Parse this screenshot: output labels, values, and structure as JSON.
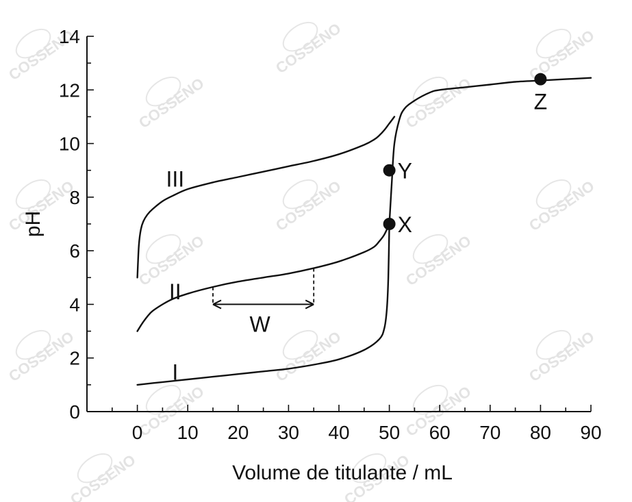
{
  "chart_data": {
    "type": "line",
    "xlabel": "Volume de titulante / mL",
    "ylabel": "pH",
    "xlim": [
      -10,
      90
    ],
    "ylim": [
      0,
      14
    ],
    "xticks": [
      0,
      10,
      20,
      30,
      40,
      50,
      60,
      70,
      80,
      90
    ],
    "yticks": [
      0,
      2,
      4,
      6,
      8,
      10,
      12,
      14
    ],
    "grid": false,
    "watermark": "COSSENO",
    "common_tail": {
      "x": [
        50,
        50.5,
        51,
        52,
        53,
        55,
        58,
        60,
        65,
        70,
        75,
        80,
        85,
        90
      ],
      "y": [
        7.0,
        8.6,
        10.0,
        10.9,
        11.3,
        11.6,
        11.9,
        12.0,
        12.1,
        12.2,
        12.3,
        12.35,
        12.4,
        12.45
      ]
    },
    "series": [
      {
        "name": "I",
        "x": [
          0,
          5,
          10,
          15,
          20,
          25,
          30,
          35,
          40,
          45,
          48,
          49,
          49.5,
          49.8,
          50
        ],
        "y": [
          1.0,
          1.1,
          1.2,
          1.3,
          1.4,
          1.5,
          1.6,
          1.75,
          1.95,
          2.3,
          2.7,
          3.1,
          3.8,
          5.0,
          7.0
        ]
      },
      {
        "name": "II",
        "x": [
          0,
          1,
          2,
          3,
          5,
          7,
          10,
          15,
          20,
          25,
          30,
          35,
          40,
          45,
          47,
          48,
          49,
          50
        ],
        "y": [
          3.0,
          3.3,
          3.55,
          3.75,
          4.0,
          4.2,
          4.4,
          4.65,
          4.85,
          5.0,
          5.15,
          5.35,
          5.6,
          5.95,
          6.15,
          6.35,
          6.6,
          7.0
        ]
      },
      {
        "name": "III",
        "x": [
          0,
          0.3,
          0.7,
          1.2,
          2,
          3,
          5,
          7,
          10,
          15,
          20,
          25,
          30,
          35,
          40,
          45,
          47,
          48,
          49,
          50,
          51
        ],
        "y": [
          5.0,
          6.2,
          6.8,
          7.1,
          7.35,
          7.55,
          7.85,
          8.05,
          8.3,
          8.55,
          8.75,
          8.95,
          9.15,
          9.35,
          9.6,
          9.95,
          10.15,
          10.3,
          10.5,
          10.75,
          11.0
        ]
      }
    ],
    "curve_labels": [
      {
        "text": "I",
        "x": 7.5,
        "y": 1.5
      },
      {
        "text": "II",
        "x": 7.5,
        "y": 4.5
      },
      {
        "text": "III",
        "x": 7.5,
        "y": 8.7
      }
    ],
    "points": [
      {
        "label": "X",
        "x": 50,
        "y": 7.0
      },
      {
        "label": "Y",
        "x": 50,
        "y": 9.0
      },
      {
        "label": "Z",
        "x": 80,
        "y": 12.4
      }
    ],
    "annotation_w": {
      "label": "W",
      "x_start": 15,
      "x_end": 35
    }
  }
}
